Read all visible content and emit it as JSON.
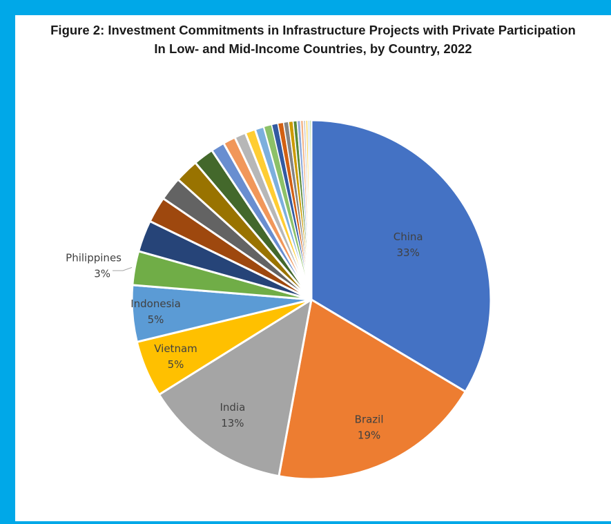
{
  "chart_data": {
    "type": "pie",
    "title": [
      "Figure 2: Investment Commitments in Infrastructure Projects with Private Participation",
      "In Low- and Mid-Income Countries, by Country, 2022"
    ],
    "slices": [
      {
        "label": "China",
        "value": 33,
        "pct_label": "33%",
        "color": "#4472c4"
      },
      {
        "label": "Brazil",
        "value": 19,
        "pct_label": "19%",
        "color": "#ed7d31"
      },
      {
        "label": "India",
        "value": 13,
        "pct_label": "13%",
        "color": "#a5a5a5"
      },
      {
        "label": "Vietnam",
        "value": 5,
        "pct_label": "5%",
        "color": "#ffc000"
      },
      {
        "label": "Indonesia",
        "value": 5,
        "pct_label": "5%",
        "color": "#5b9bd5"
      },
      {
        "label": "Philippines",
        "value": 3,
        "pct_label": "3%",
        "color": "#70ad47"
      },
      {
        "label": "",
        "value": 2.8,
        "color": "#264478"
      },
      {
        "label": "",
        "value": 2.3,
        "color": "#9e480e"
      },
      {
        "label": "",
        "value": 2.1,
        "color": "#636363"
      },
      {
        "label": "",
        "value": 2.1,
        "color": "#997300"
      },
      {
        "label": "",
        "value": 1.8,
        "color": "#43682b"
      },
      {
        "label": "",
        "value": 1.2,
        "color": "#698ed0"
      },
      {
        "label": "",
        "value": 1.1,
        "color": "#f1975a"
      },
      {
        "label": "",
        "value": 1.0,
        "color": "#b7b7b7"
      },
      {
        "label": "",
        "value": 0.9,
        "color": "#ffcd33"
      },
      {
        "label": "",
        "value": 0.8,
        "color": "#7cafdd"
      },
      {
        "label": "",
        "value": 0.7,
        "color": "#8cc168"
      },
      {
        "label": "",
        "value": 0.55,
        "color": "#335aa1"
      },
      {
        "label": "",
        "value": 0.5,
        "color": "#d26012"
      },
      {
        "label": "",
        "value": 0.45,
        "color": "#848484"
      },
      {
        "label": "",
        "value": 0.4,
        "color": "#cc9a00"
      },
      {
        "label": "",
        "value": 0.35,
        "color": "#5a8a39"
      },
      {
        "label": "",
        "value": 0.3,
        "color": "#8faadc"
      },
      {
        "label": "",
        "value": 0.25,
        "color": "#f4b183"
      },
      {
        "label": "",
        "value": 0.2,
        "color": "#c9c9c9"
      },
      {
        "label": "",
        "value": 0.2,
        "color": "#ffd966"
      },
      {
        "label": "",
        "value": 0.15,
        "color": "#9dc3e6"
      },
      {
        "label": "",
        "value": 0.15,
        "color": "#a9d18e"
      }
    ],
    "legend": "none"
  }
}
